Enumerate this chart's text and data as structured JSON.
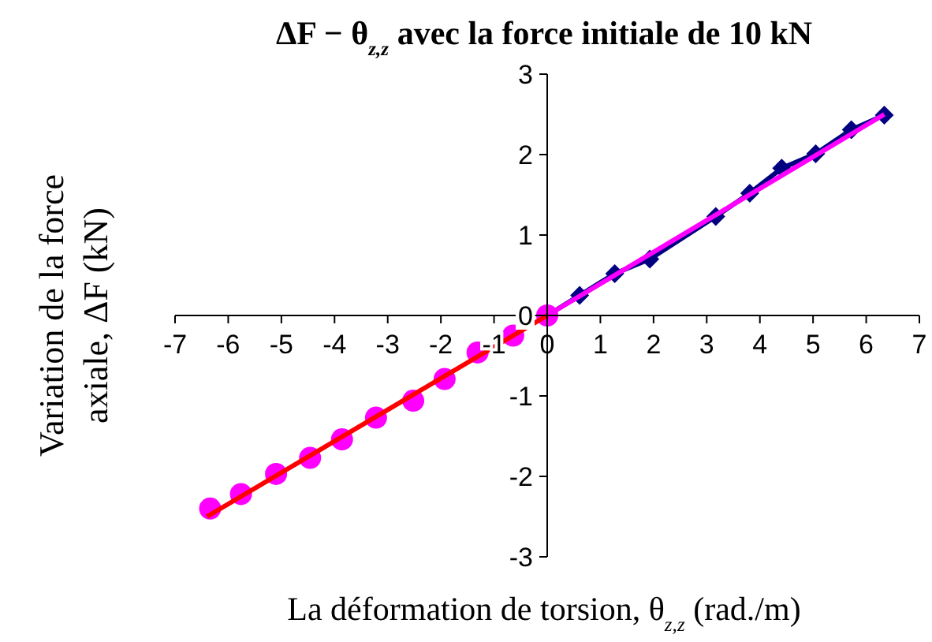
{
  "chart_data": {
    "type": "scatter",
    "title": "ΔF − θ$_{z,z}$  avec la force initiale de 10 kN",
    "xlabel": "La déformation de torsion,  θ$_{z,z}$   (rad./m)",
    "ylabel": "Variation de la force\naxiale,  ΔF (kN)",
    "xlim": [
      -7,
      7
    ],
    "xticks": [
      -7,
      -6,
      -5,
      -4,
      -3,
      -2,
      -1,
      0,
      1,
      2,
      3,
      4,
      5,
      6,
      7
    ],
    "ylim": [
      -3,
      3
    ],
    "yticks": [
      -3,
      -2,
      -1,
      0,
      1,
      2,
      3
    ],
    "grid": false,
    "series": [
      {
        "type": "line",
        "color": "#000080",
        "marker": "diamond",
        "x": [
          0,
          0.61,
          1.27,
          1.93,
          3.17,
          3.81,
          4.41,
          5.05,
          5.72,
          6.34
        ],
        "values": [
          0,
          0.25,
          0.52,
          0.7,
          1.23,
          1.52,
          1.83,
          2.01,
          2.31,
          2.49
        ]
      },
      {
        "type": "line",
        "color": "#ff00ff",
        "marker": "none",
        "x": [
          0,
          6.34
        ],
        "values": [
          0,
          2.5
        ]
      },
      {
        "color": "#ff00ff",
        "marker": "circle",
        "x": [
          0,
          -0.64,
          -1.31,
          -1.93,
          -2.52,
          -3.22,
          -3.86,
          -4.46,
          -5.1,
          -5.76,
          -6.34
        ],
        "values": [
          0,
          -0.25,
          -0.46,
          -0.79,
          -1.06,
          -1.27,
          -1.54,
          -1.77,
          -1.97,
          -2.22,
          -2.4
        ]
      },
      {
        "type": "line",
        "color": "#ff0000",
        "marker": "none",
        "x": [
          -6.4,
          0
        ],
        "values": [
          -2.5,
          0
        ]
      }
    ]
  }
}
